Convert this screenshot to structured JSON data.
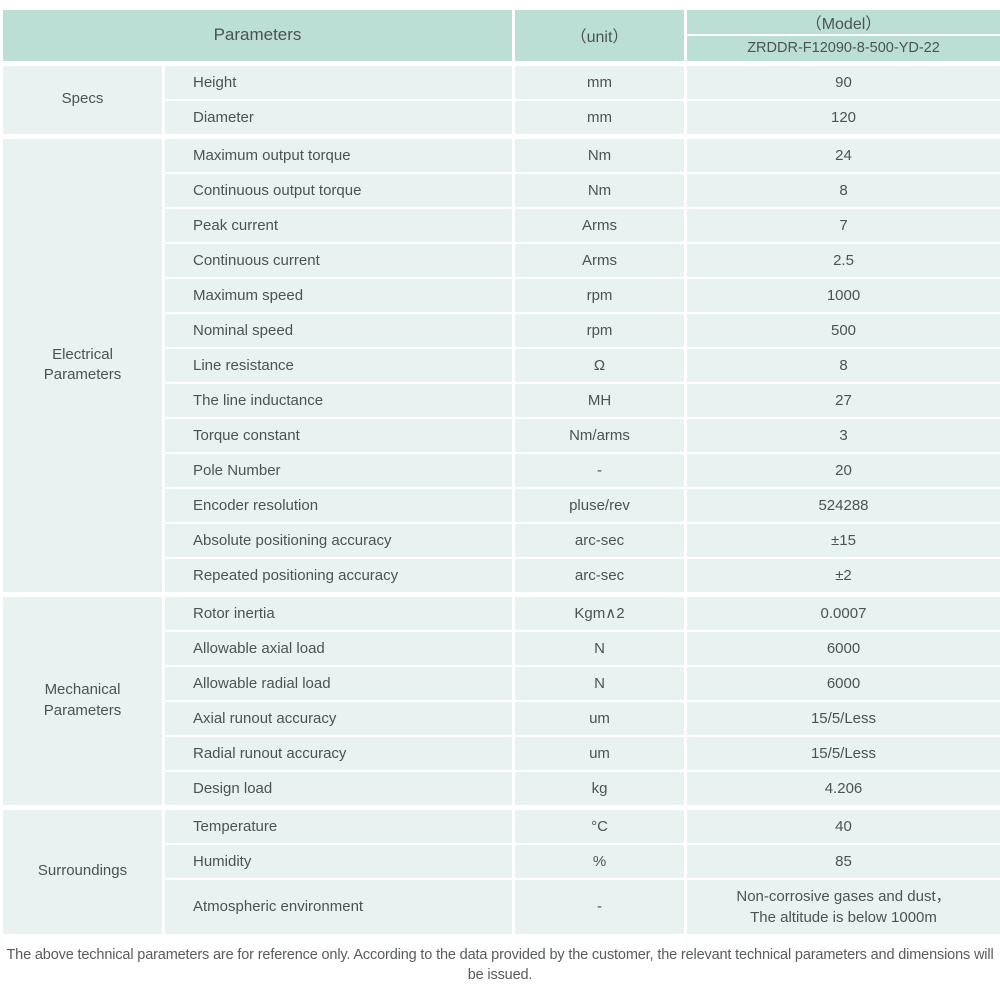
{
  "colors": {
    "header_bg": "#bbdfd4",
    "row_bg": "#e8f2f0",
    "divider": "#ffffff",
    "text": "#4d5254",
    "footer_text": "#585c5e"
  },
  "header": {
    "parameters_label": "Parameters",
    "unit_label": "（unit）",
    "model_label": "（Model）",
    "model_value": "ZRDDR-F12090-8-500-YD-22"
  },
  "groups": [
    {
      "label": "Specs",
      "rows": [
        {
          "name": "Height",
          "unit": "mm",
          "value": "90"
        },
        {
          "name": "Diameter",
          "unit": "mm",
          "value": "120"
        }
      ]
    },
    {
      "label": "Electrical\nParameters",
      "rows": [
        {
          "name": "Maximum output torque",
          "unit": "Nm",
          "value": "24"
        },
        {
          "name": "Continuous output torque",
          "unit": "Nm",
          "value": "8"
        },
        {
          "name": "Peak current",
          "unit": "Arms",
          "value": "7"
        },
        {
          "name": "Continuous current",
          "unit": "Arms",
          "value": "2.5"
        },
        {
          "name": "Maximum speed",
          "unit": "rpm",
          "value": "1000"
        },
        {
          "name": "Nominal speed",
          "unit": "rpm",
          "value": "500"
        },
        {
          "name": "Line resistance",
          "unit": "Ω",
          "value": "8"
        },
        {
          "name": "The line inductance",
          "unit": "MH",
          "value": "27"
        },
        {
          "name": "Torque constant",
          "unit": "Nm/arms",
          "value": "3"
        },
        {
          "name": "Pole Number",
          "unit": "-",
          "value": "20"
        },
        {
          "name": "Encoder resolution",
          "unit": "pluse/rev",
          "value": "524288"
        },
        {
          "name": "Absolute positioning accuracy",
          "unit": "arc-sec",
          "value": "±15"
        },
        {
          "name": "Repeated positioning accuracy",
          "unit": "arc-sec",
          "value": "±2"
        }
      ]
    },
    {
      "label": "Mechanical\nParameters",
      "rows": [
        {
          "name": "Rotor inertia",
          "unit": "Kgm∧2",
          "value": "0.0007"
        },
        {
          "name": "Allowable axial load",
          "unit": "N",
          "value": "6000"
        },
        {
          "name": "Allowable radial load",
          "unit": "N",
          "value": "6000"
        },
        {
          "name": "Axial runout accuracy",
          "unit": "um",
          "value": "15/5/Less"
        },
        {
          "name": "Radial runout accuracy",
          "unit": "um",
          "value": "15/5/Less"
        },
        {
          "name": "Design load",
          "unit": "kg",
          "value": "4.206"
        }
      ]
    },
    {
      "label": "Surroundings",
      "rows": [
        {
          "name": "Temperature",
          "unit": "°C",
          "value": "40"
        },
        {
          "name": "Humidity",
          "unit": "%",
          "value": "85"
        },
        {
          "name": "Atmospheric environment",
          "unit": "-",
          "value": "Non-corrosive gases and dust，\nThe altitude is below 1000m"
        }
      ]
    }
  ],
  "footer": {
    "note": "The above technical parameters are for reference only. According to the data provided by the customer, the relevant technical parameters and dimensions will be issued."
  }
}
